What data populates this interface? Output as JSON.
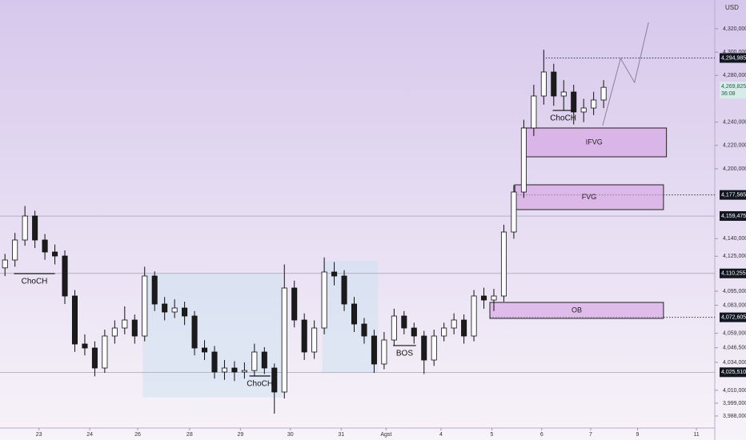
{
  "chart_data": {
    "type": "candlestick",
    "currency": "USD",
    "xlim": [
      -0.5,
      70.5
    ],
    "ylim": [
      3977700,
      4344700
    ],
    "xticks": [
      {
        "value": 3.4,
        "label": "23"
      },
      {
        "value": 8.5,
        "label": "24"
      },
      {
        "value": 13.3,
        "label": "26"
      },
      {
        "value": 18.5,
        "label": "28"
      },
      {
        "value": 23.6,
        "label": "29"
      },
      {
        "value": 28.6,
        "label": "30"
      },
      {
        "value": 33.7,
        "label": "31"
      },
      {
        "value": 38.2,
        "label": "Agst"
      },
      {
        "value": 43.7,
        "label": "4"
      },
      {
        "value": 48.8,
        "label": "5"
      },
      {
        "value": 53.8,
        "label": "6"
      },
      {
        "value": 58.7,
        "label": "7"
      },
      {
        "value": 63.4,
        "label": "9"
      },
      {
        "value": 69.3,
        "label": "11"
      }
    ],
    "yticks": [
      {
        "value": 4320000,
        "label": "4,320,000"
      },
      {
        "value": 4300000,
        "label": "4,300,000"
      },
      {
        "value": 4280000,
        "label": "4,280,000"
      },
      {
        "value": 4240000,
        "label": "4,240,000"
      },
      {
        "value": 4220000,
        "label": "4,220,000"
      },
      {
        "value": 4200000,
        "label": "4,200,000"
      },
      {
        "value": 4140000,
        "label": "4,140,000"
      },
      {
        "value": 4125000,
        "label": "4,125,000"
      },
      {
        "value": 4095000,
        "label": "4,095,000"
      },
      {
        "value": 4083000,
        "label": "4,083,000"
      },
      {
        "value": 4059000,
        "label": "4,059,000"
      },
      {
        "value": 4046500,
        "label": "4,046,500"
      },
      {
        "value": 4034000,
        "label": "4,034,000"
      },
      {
        "value": 4010000,
        "label": "4,010,000"
      },
      {
        "value": 3999000,
        "label": "3,999,000"
      },
      {
        "value": 3988000,
        "label": "3,988,000"
      }
    ],
    "candles": {
      "open": [
        4115000,
        4121750,
        4138900,
        4159480,
        4138900,
        4128610,
        4125180,
        4090880,
        4049720,
        4046290,
        4029140,
        4056580,
        4063440,
        4070300,
        4056580,
        4108030,
        4084020,
        4077160,
        4080590,
        4073730,
        4046290,
        4042860,
        4025710,
        4029140,
        4025710,
        4027000,
        4042860,
        4029140,
        4008560,
        4097740,
        4070300,
        4042860,
        4063440,
        4111460,
        4108030,
        4084020,
        4066870,
        4056580,
        4032570,
        4053150,
        4073730,
        4063440,
        4056580,
        4036000,
        4056580,
        4063440,
        4070300,
        4056580,
        4090880,
        4087450,
        4090880,
        4145760,
        4180060,
        4234940,
        4262380,
        4282960,
        4262380,
        4265810,
        4248660,
        4252090,
        4258950
      ],
      "high": [
        4127000,
        4145000,
        4168000,
        4164000,
        4144000,
        4135000,
        4130000,
        4096000,
        4058000,
        4052000,
        4062000,
        4070000,
        4082000,
        4075000,
        4116000,
        4112000,
        4090000,
        4088000,
        4086000,
        4078000,
        4053000,
        4048000,
        4036000,
        4035000,
        4034000,
        4050000,
        4047000,
        4033000,
        4118000,
        4104000,
        4076000,
        4070000,
        4124000,
        4120000,
        4113000,
        4090000,
        4072000,
        4062000,
        4060000,
        4080000,
        4078000,
        4068000,
        4061000,
        4062000,
        4068000,
        4076000,
        4075000,
        4096000,
        4098000,
        4097000,
        4152000,
        4186000,
        4242000,
        4272000,
        4302000,
        4290000,
        4276000,
        4272000,
        4260000,
        4266000,
        4276000
      ],
      "low": [
        4108000,
        4116000,
        4134000,
        4132000,
        4122000,
        4118000,
        4084000,
        4043000,
        4040000,
        4022000,
        4025000,
        4050000,
        4058000,
        4050000,
        4052000,
        4078000,
        4070000,
        4072000,
        4066000,
        4040000,
        4036000,
        4020000,
        4019000,
        4018000,
        4020000,
        4022000,
        4024000,
        3990000,
        4003000,
        4064000,
        4036000,
        4037000,
        4058000,
        4100000,
        4078000,
        4060000,
        4050000,
        4025000,
        4028000,
        4048000,
        4058000,
        4050000,
        4024000,
        4031000,
        4052000,
        4058000,
        4050000,
        4052000,
        4080000,
        4078000,
        4086000,
        4140000,
        4175000,
        4228000,
        4255000,
        4254000,
        4250000,
        4238000,
        4240000,
        4246000,
        4252000
      ],
      "close": [
        4121750,
        4138900,
        4159480,
        4138900,
        4128610,
        4125180,
        4090880,
        4049720,
        4046290,
        4029140,
        4056580,
        4063440,
        4070300,
        4056580,
        4108030,
        4084020,
        4077160,
        4080590,
        4073730,
        4046290,
        4042860,
        4025710,
        4029140,
        4025710,
        4027000,
        4042860,
        4029140,
        4008560,
        4097740,
        4070300,
        4042860,
        4063440,
        4111460,
        4108030,
        4084020,
        4066870,
        4056580,
        4032570,
        4053150,
        4073730,
        4063440,
        4056580,
        4036000,
        4056580,
        4063440,
        4070300,
        4056580,
        4090880,
        4087450,
        4090880,
        4145760,
        4180060,
        4234940,
        4262380,
        4282960,
        4262380,
        4265810,
        4248660,
        4252090,
        4258950,
        4269825
      ]
    },
    "profile_ranges": [
      {
        "x": [
          13.8,
          27.8
        ],
        "price": [
          4110000,
          4004000
        ]
      },
      {
        "x": [
          31.8,
          37.4
        ],
        "price": [
          4121000,
          4025000
        ]
      }
    ],
    "zones": [
      {
        "label": "IFVG",
        "x": [
          51.8,
          66.3
        ],
        "top": 4234940,
        "bottom": 4210240
      },
      {
        "label": "FVG",
        "x": [
          51.1,
          66.0
        ],
        "top": 4186234,
        "bottom": 4164968
      },
      {
        "label": "OB",
        "x": [
          48.6,
          66.0
        ],
        "top": 4085390,
        "bottom": 4071670
      }
    ],
    "structure": [
      {
        "text": "ChoCH",
        "x": [
          0.9,
          5.0
        ],
        "price": 4110100
      },
      {
        "text": "ChoCH",
        "x": [
          54.9,
          57.0
        ],
        "price": 4250000
      },
      {
        "text": "ChoCH",
        "x": [
          24.5,
          26.6
        ],
        "price": 4022300
      },
      {
        "text": "BOS",
        "x": [
          38.9,
          41.2
        ],
        "price": 4048400
      }
    ],
    "levels": [
      {
        "value": 4294985,
        "label": "4,294,985",
        "from": 54.2,
        "style": "dotted"
      },
      {
        "value": 4177565,
        "label": "4,177,565",
        "from": 51.1,
        "style": "dotted"
      },
      {
        "value": 4159475,
        "label": "4,159,475",
        "from": -0.5,
        "style": "solid"
      },
      {
        "value": 4110255,
        "label": "4,110,255",
        "from": -0.5,
        "style": "solid"
      },
      {
        "value": 4072605,
        "label": "4,072,605",
        "from": 48.6,
        "style": "dotted"
      },
      {
        "value": 4025510,
        "label": "4,025,510",
        "from": -0.5,
        "style": "solid"
      }
    ],
    "current": {
      "value": 4269825,
      "label": "4,269,825",
      "countdown": "36:08"
    },
    "projection": {
      "x": [
        59.9,
        61.7,
        63.1,
        64.5
      ],
      "values": [
        4237000,
        4294600,
        4274000,
        4325500
      ]
    }
  }
}
